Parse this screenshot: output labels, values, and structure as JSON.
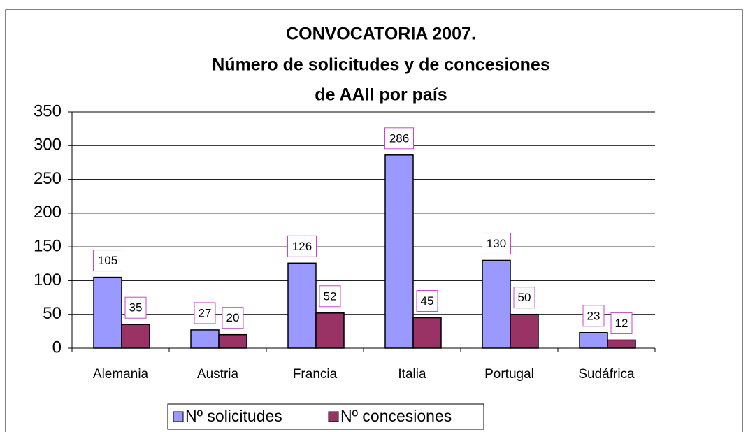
{
  "chart_data": {
    "type": "bar",
    "title": [
      "CONVOCATORIA 2007.",
      "Número de solicitudes y de concesiones",
      "de AAII por país"
    ],
    "categories": [
      "Alemania",
      "Austria",
      "Francia",
      "Italia",
      "Portugal",
      "Sudáfrica"
    ],
    "series": [
      {
        "name": "Nº solicitudes",
        "color": "#9999ff",
        "values": [
          105,
          27,
          126,
          286,
          130,
          23
        ]
      },
      {
        "name": "Nº concesiones",
        "color": "#993366",
        "values": [
          35,
          20,
          52,
          45,
          50,
          12
        ]
      }
    ],
    "ylim": [
      0,
      350
    ],
    "yticks": [
      0,
      50,
      100,
      150,
      200,
      250,
      300,
      350
    ],
    "grid": true,
    "legend": "bottom"
  }
}
